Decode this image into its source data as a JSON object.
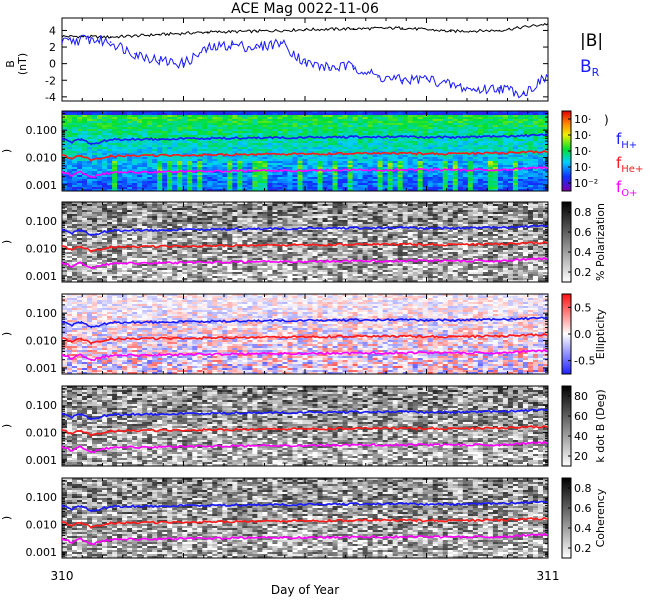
{
  "chart_data": {
    "type": "line",
    "title": "ACE Mag 0022-11-06",
    "xlabel": "Day of Year",
    "x_ticks": [
      "310",
      "311"
    ],
    "xlim": [
      310,
      311
    ],
    "panels": [
      {
        "id": "field",
        "type": "line",
        "ylabel": "B (nT)",
        "ylim": [
          -4.5,
          5.5
        ],
        "y_ticks": [
          -4,
          -2,
          0,
          2,
          4
        ],
        "legend": [
          {
            "label": "|B|",
            "color": "#000000"
          },
          {
            "label": "B_R",
            "color": "#1a1aff"
          }
        ],
        "series": [
          {
            "name": "|B|",
            "color": "#000000",
            "x": [
              310.0,
              310.1,
              310.2,
              310.3,
              310.4,
              310.5,
              310.6,
              310.7,
              310.8,
              310.9,
              311.0
            ],
            "y": [
              3.3,
              3.2,
              3.5,
              3.8,
              3.9,
              4.1,
              4.2,
              4.3,
              3.9,
              4.0,
              4.8
            ]
          },
          {
            "name": "B_R",
            "color": "#1a1aff",
            "x": [
              310.0,
              310.05,
              310.1,
              310.15,
              310.2,
              310.25,
              310.3,
              310.35,
              310.4,
              310.45,
              310.5,
              310.55,
              310.6,
              310.65,
              310.7,
              310.75,
              310.8,
              310.85,
              310.9,
              310.95,
              311.0
            ],
            "y": [
              2.5,
              3.0,
              2.6,
              1.2,
              0.4,
              0.0,
              1.8,
              2.3,
              1.9,
              2.6,
              0.1,
              -0.5,
              -0.3,
              -1.6,
              -2.0,
              -1.8,
              -2.6,
              -3.2,
              -2.9,
              -3.6,
              -1.5
            ]
          }
        ]
      },
      {
        "id": "power",
        "type": "heatmap",
        "ylabel": "Freq (Hz)",
        "yscale": "log",
        "ylim": [
          0.0006,
          0.5
        ],
        "y_ticks": [
          "0.001",
          "0.010",
          "0.100"
        ],
        "colorbar": {
          "ticks": [
            "10⁻²",
            "10·",
            "10·",
            "10·",
            "10·"
          ],
          "colormap": "rainbow"
        },
        "legend": [
          {
            "label": "f_H+",
            "color": "#1a1aff"
          },
          {
            "label": "f_He+",
            "color": "#ff1a1a"
          },
          {
            "label": "f_O+",
            "color": "#ff00ff"
          }
        ]
      },
      {
        "id": "polarization",
        "type": "heatmap",
        "ylabel": "Freq (Hz)",
        "yscale": "log",
        "ylim": [
          0.0006,
          0.5
        ],
        "y_ticks": [
          "0.001",
          "0.010",
          "0.100"
        ],
        "colorbar": {
          "label": "% Polarization",
          "ticks": [
            "0.2",
            "0.4",
            "0.6",
            "0.8"
          ],
          "colormap": "gray"
        }
      },
      {
        "id": "ellipticity",
        "type": "heatmap",
        "ylabel": "Freq (Hz)",
        "yscale": "log",
        "ylim": [
          0.0006,
          0.5
        ],
        "y_ticks": [
          "0.001",
          "0.010",
          "0.100"
        ],
        "colorbar": {
          "label": "Ellipticity",
          "ticks": [
            "-0.5",
            "0.0",
            "0.5"
          ],
          "colormap": "bwr"
        }
      },
      {
        "id": "kdotb",
        "type": "heatmap",
        "ylabel": "Freq (Hz)",
        "yscale": "log",
        "ylim": [
          0.0006,
          0.5
        ],
        "y_ticks": [
          "0.001",
          "0.010",
          "0.100"
        ],
        "colorbar": {
          "label": "k dot B (Deg)",
          "ticks": [
            "20",
            "40",
            "60",
            "80"
          ],
          "colormap": "gray"
        }
      },
      {
        "id": "coherency",
        "type": "heatmap",
        "ylabel": "Freq (Hz)",
        "yscale": "log",
        "ylim": [
          0.0006,
          0.5
        ],
        "y_ticks": [
          "0.001",
          "0.010",
          "0.100"
        ],
        "colorbar": {
          "label": "Coherency",
          "ticks": [
            "0.2",
            "0.4",
            "0.6",
            "0.8"
          ],
          "colormap": "gray"
        }
      }
    ],
    "gyrofrequency_lines": [
      {
        "name": "f_H+",
        "color": "#1a1aff",
        "x": [
          310.0,
          310.02,
          310.04,
          310.06,
          310.1,
          310.2,
          310.3,
          310.4,
          310.5,
          310.6,
          310.7,
          310.8,
          310.9,
          311.0
        ],
        "y": [
          0.05,
          0.035,
          0.048,
          0.03,
          0.045,
          0.048,
          0.05,
          0.052,
          0.054,
          0.056,
          0.057,
          0.055,
          0.058,
          0.068
        ]
      },
      {
        "name": "f_He+",
        "color": "#ff1a1a",
        "x": [
          310.0,
          310.02,
          310.04,
          310.06,
          310.1,
          310.2,
          310.3,
          310.4,
          310.5,
          310.6,
          310.7,
          310.8,
          310.9,
          311.0
        ],
        "y": [
          0.0125,
          0.0088,
          0.012,
          0.0075,
          0.0112,
          0.012,
          0.0125,
          0.013,
          0.0135,
          0.014,
          0.0142,
          0.0138,
          0.0145,
          0.017
        ]
      },
      {
        "name": "f_O+",
        "color": "#ff00ff",
        "x": [
          310.0,
          310.02,
          310.04,
          310.06,
          310.1,
          310.2,
          310.3,
          310.4,
          310.5,
          310.6,
          310.7,
          310.8,
          310.9,
          311.0
        ],
        "y": [
          0.0031,
          0.0022,
          0.003,
          0.0019,
          0.0028,
          0.003,
          0.0031,
          0.0033,
          0.0034,
          0.0035,
          0.0036,
          0.0035,
          0.0036,
          0.0043
        ]
      }
    ]
  }
}
